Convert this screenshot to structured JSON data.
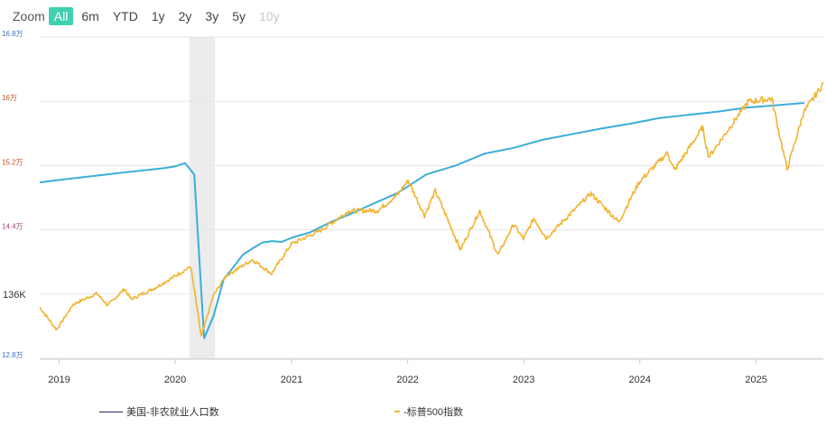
{
  "zoom": {
    "label": "Zoom",
    "buttons": [
      "All",
      "6m",
      "YTD",
      "1y",
      "2y",
      "3y",
      "5y",
      "10y"
    ],
    "active": "All",
    "disabled": [
      "10y"
    ]
  },
  "colors": {
    "employment": "#3aaed8",
    "sp500": "#f2b330",
    "shade": "#ececec",
    "grid": "#e6e6e6"
  },
  "chart_data": {
    "type": "line",
    "x_range": [
      "2018-11-01",
      "2025-07-31"
    ],
    "x_ticks": [
      "2019",
      "2020",
      "2021",
      "2022",
      "2023",
      "2024",
      "2025"
    ],
    "y_range_thousands": [
      128000,
      168000
    ],
    "y_ticks": [
      {
        "value": 168000,
        "label": "16.8万"
      },
      {
        "value": 160000,
        "label": "16万"
      },
      {
        "value": 152000,
        "label": "15.2万"
      },
      {
        "value": 144000,
        "label": "14.4万"
      },
      {
        "value": 136000,
        "label": "136K"
      },
      {
        "value": 128000,
        "label": "12.8万"
      }
    ],
    "shaded_range": [
      "2020-02-15",
      "2020-05-05"
    ],
    "series": [
      {
        "name": "美国-非农就业人口数",
        "unit": "thousands",
        "points": [
          [
            "2018-11-01",
            149900
          ],
          [
            "2019-01-01",
            150200
          ],
          [
            "2019-06-01",
            150900
          ],
          [
            "2019-12-01",
            151700
          ],
          [
            "2020-01-01",
            151900
          ],
          [
            "2020-02-01",
            152300
          ],
          [
            "2020-03-01",
            150900
          ],
          [
            "2020-04-01",
            130500
          ],
          [
            "2020-05-01",
            133300
          ],
          [
            "2020-06-01",
            137800
          ],
          [
            "2020-07-01",
            139300
          ],
          [
            "2020-08-01",
            140900
          ],
          [
            "2020-09-01",
            141700
          ],
          [
            "2020-10-01",
            142400
          ],
          [
            "2020-11-01",
            142600
          ],
          [
            "2020-12-01",
            142500
          ],
          [
            "2021-01-01",
            143000
          ],
          [
            "2021-03-01",
            143700
          ],
          [
            "2021-05-01",
            144900
          ],
          [
            "2021-07-01",
            145900
          ],
          [
            "2021-09-01",
            147000
          ],
          [
            "2021-12-01",
            148600
          ],
          [
            "2022-03-01",
            150900
          ],
          [
            "2022-06-01",
            152000
          ],
          [
            "2022-09-01",
            153500
          ],
          [
            "2022-12-01",
            154200
          ],
          [
            "2023-03-01",
            155200
          ],
          [
            "2023-06-01",
            155900
          ],
          [
            "2023-09-01",
            156600
          ],
          [
            "2023-12-01",
            157200
          ],
          [
            "2024-03-01",
            157900
          ],
          [
            "2024-06-01",
            158300
          ],
          [
            "2024-09-01",
            158700
          ],
          [
            "2024-12-01",
            159200
          ],
          [
            "2025-03-01",
            159500
          ],
          [
            "2025-06-01",
            159800
          ]
        ]
      },
      {
        "name": "-标普500指数",
        "unit": "index",
        "points": [
          [
            "2018-11-01",
            2720
          ],
          [
            "2018-12-24",
            2350
          ],
          [
            "2019-02-15",
            2770
          ],
          [
            "2019-04-30",
            2945
          ],
          [
            "2019-06-03",
            2750
          ],
          [
            "2019-07-26",
            3020
          ],
          [
            "2019-08-15",
            2850
          ],
          [
            "2019-10-31",
            3040
          ],
          [
            "2019-12-31",
            3230
          ],
          [
            "2020-02-19",
            3386
          ],
          [
            "2020-03-23",
            2237
          ],
          [
            "2020-04-30",
            2912
          ],
          [
            "2020-06-08",
            3232
          ],
          [
            "2020-08-31",
            3500
          ],
          [
            "2020-10-30",
            3270
          ],
          [
            "2020-12-31",
            3756
          ],
          [
            "2021-03-31",
            3973
          ],
          [
            "2021-06-30",
            4298
          ],
          [
            "2021-09-30",
            4308
          ],
          [
            "2021-11-30",
            4567
          ],
          [
            "2022-01-03",
            4797
          ],
          [
            "2022-02-23",
            4225
          ],
          [
            "2022-03-29",
            4632
          ],
          [
            "2022-06-16",
            3667
          ],
          [
            "2022-08-16",
            4305
          ],
          [
            "2022-10-12",
            3577
          ],
          [
            "2022-11-30",
            4080
          ],
          [
            "2022-12-31",
            3840
          ],
          [
            "2023-02-02",
            4179
          ],
          [
            "2023-03-13",
            3855
          ],
          [
            "2023-07-31",
            4588
          ],
          [
            "2023-10-27",
            4117
          ],
          [
            "2023-12-29",
            4770
          ],
          [
            "2024-03-28",
            5254
          ],
          [
            "2024-04-19",
            4967
          ],
          [
            "2024-07-16",
            5667
          ],
          [
            "2024-08-05",
            5186
          ],
          [
            "2024-12-06",
            6090
          ],
          [
            "2025-02-19",
            6144
          ],
          [
            "2025-04-08",
            4982
          ],
          [
            "2025-05-30",
            5912
          ],
          [
            "2025-07-31",
            6390
          ]
        ]
      }
    ],
    "sp500_to_employment_axis": {
      "index_a": 2237,
      "emp_a": 130700,
      "index_b": 6390,
      "emp_b": 162200
    }
  },
  "legend": {
    "employment_label": "美国-非农就业人口数",
    "sp500_label": "-标普500指数"
  }
}
